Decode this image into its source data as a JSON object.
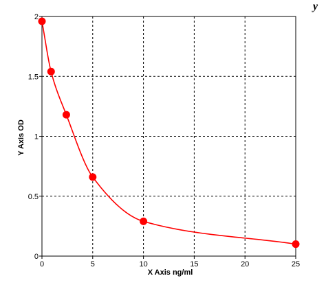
{
  "chart_data": {
    "type": "scatter",
    "title": "",
    "xlabel": "X Axis ng/ml",
    "ylabel": "Y Axis OD",
    "xlim": [
      0,
      25
    ],
    "ylim": [
      0,
      2
    ],
    "x_ticks": [
      0,
      5,
      10,
      15,
      20,
      25
    ],
    "y_ticks": [
      0,
      0.5,
      1,
      1.5,
      2
    ],
    "x_tick_labels": [
      "0",
      "5",
      "10",
      "15",
      "20",
      "25"
    ],
    "y_tick_labels": [
      "0",
      "0.5",
      "1",
      "1.5",
      "2"
    ],
    "grid": true,
    "series": [
      {
        "x": [
          0,
          0.9,
          2.4,
          5,
          10,
          25
        ],
        "y": [
          1.96,
          1.54,
          1.18,
          0.66,
          0.29,
          0.1
        ]
      }
    ],
    "fit_curve": true,
    "colors": {
      "points": "#ff0000",
      "curve": "#ff0000",
      "grid": "#000000",
      "frame": "#000000"
    },
    "corner_text": "y"
  }
}
